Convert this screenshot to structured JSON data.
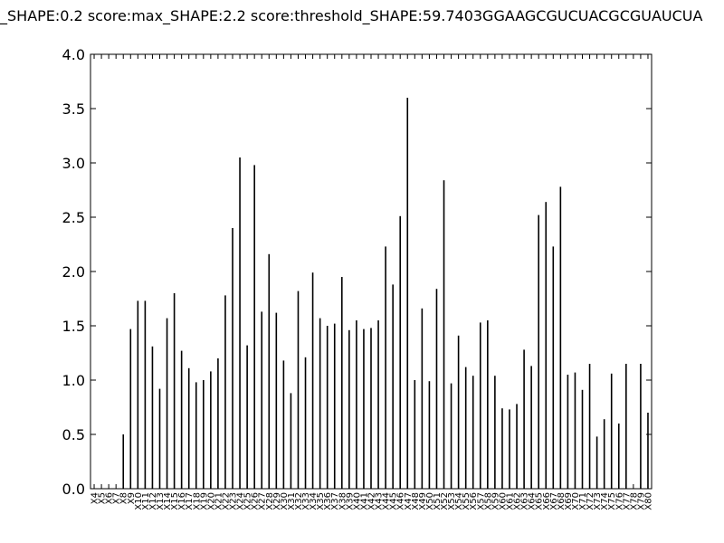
{
  "chart_data": {
    "type": "bar",
    "title": "_SHAPE:0.2 score:max_SHAPE:2.2 score:threshold_SHAPE:59.7403GGAAGCGUCUACGCGUAUCUA",
    "xlabel": "",
    "ylabel": "",
    "ylim": [
      0,
      4.0
    ],
    "yticks": [
      "0.0",
      "0.5",
      "1.0",
      "1.5",
      "2.0",
      "2.5",
      "3.0",
      "3.5",
      "4.0"
    ],
    "grid": false,
    "legend": "none",
    "bar_color": "#000000",
    "categories": [
      "X4",
      "X5",
      "X6",
      "X7",
      "X8",
      "X9",
      "X10",
      "X11",
      "X12",
      "X13",
      "X14",
      "X15",
      "X16",
      "X17",
      "X18",
      "X19",
      "X20",
      "X21",
      "X22",
      "X23",
      "X24",
      "X25",
      "X26",
      "X27",
      "X28",
      "X29",
      "X30",
      "X31",
      "X32",
      "X33",
      "X34",
      "X35",
      "X36",
      "X37",
      "X38",
      "X39",
      "X40",
      "X41",
      "X42",
      "X43",
      "X44",
      "X45",
      "X46",
      "X47",
      "X48",
      "X49",
      "X50",
      "X51",
      "X52",
      "X53",
      "X54",
      "X55",
      "X56",
      "X57",
      "X58",
      "X59",
      "X60",
      "X61",
      "X62",
      "X63",
      "X64",
      "X65",
      "X66",
      "X67",
      "X68",
      "X69",
      "X70",
      "X71",
      "X72",
      "X73",
      "X74",
      "X75",
      "X76",
      "X77",
      "X78",
      "X79",
      "X80"
    ],
    "values": [
      0,
      0,
      0,
      0,
      0.5,
      1.47,
      1.73,
      1.73,
      1.31,
      0.92,
      1.57,
      1.8,
      1.27,
      1.11,
      0.98,
      1.0,
      1.08,
      1.2,
      1.78,
      2.4,
      3.05,
      1.32,
      2.98,
      1.63,
      2.16,
      1.62,
      1.18,
      0.88,
      1.82,
      1.21,
      1.99,
      1.57,
      1.5,
      1.52,
      1.95,
      1.46,
      1.55,
      1.47,
      1.48,
      1.55,
      2.23,
      1.88,
      2.51,
      3.6,
      1.0,
      1.66,
      0.99,
      1.84,
      2.84,
      0.97,
      1.41,
      1.12,
      1.04,
      1.53,
      1.55,
      1.04,
      0.74,
      0.73,
      0.78,
      1.28,
      1.13,
      2.52,
      2.64,
      2.23,
      2.78,
      1.05,
      1.07,
      0.91,
      1.15,
      0.48,
      0.64,
      1.06,
      0.6,
      1.15,
      0,
      1.15,
      0.7
    ]
  }
}
